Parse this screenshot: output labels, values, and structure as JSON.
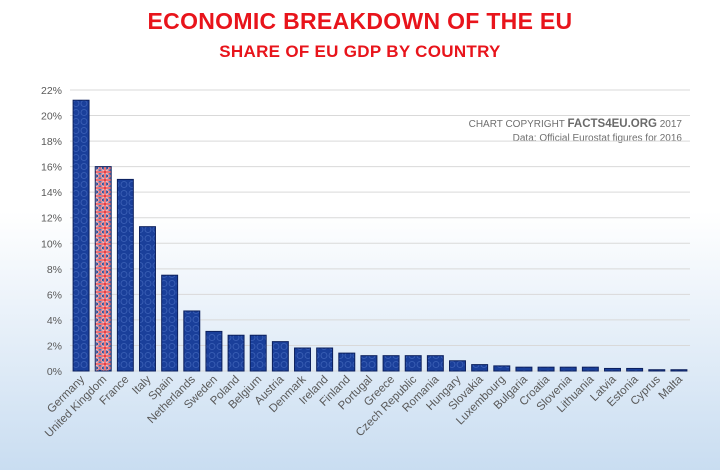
{
  "title": "ECONOMIC BREAKDOWN OF THE EU",
  "subtitle": "SHARE OF EU GDP BY COUNTRY",
  "copyright": {
    "prefix": "CHART COPYRIGHT ",
    "brand": "FACTS4EU.ORG",
    "year": " 2017",
    "source": "Data: Official Eurostat figures for 2016"
  },
  "colors": {
    "title": "#e8141b",
    "bar": "#1a3f9a",
    "bar_edge": "#0b1f5c",
    "uk_blue": "#1f3c8c",
    "uk_red": "#e11b22",
    "grid": "#d9d9d9",
    "text": "#595959"
  },
  "chart_data": {
    "type": "bar",
    "title": "SHARE OF EU GDP BY COUNTRY",
    "categories": [
      "Germany",
      "United Kingdom",
      "France",
      "Italy",
      "Spain",
      "Netherlands",
      "Sweden",
      "Poland",
      "Belgium",
      "Austria",
      "Denmark",
      "Ireland",
      "Finland",
      "Portugal",
      "Greece",
      "Czech Republic",
      "Romania",
      "Hungary",
      "Slovakia",
      "Luxembourg",
      "Bulgaria",
      "Croatia",
      "Slovenia",
      "Lithuania",
      "Latvia",
      "Estonia",
      "Cyprus",
      "Malta"
    ],
    "values": [
      21.2,
      16.0,
      15.0,
      11.3,
      7.5,
      4.7,
      3.1,
      2.8,
      2.8,
      2.3,
      1.8,
      1.8,
      1.4,
      1.2,
      1.2,
      1.2,
      1.2,
      0.8,
      0.5,
      0.4,
      0.3,
      0.3,
      0.3,
      0.3,
      0.2,
      0.2,
      0.1,
      0.1
    ],
    "highlight": "United Kingdom",
    "ylim": [
      0,
      22
    ],
    "yticks": [
      "0%",
      "2%",
      "4%",
      "6%",
      "8%",
      "10%",
      "12%",
      "14%",
      "16%",
      "18%",
      "20%",
      "22%"
    ],
    "grid": true,
    "legend": "none"
  }
}
